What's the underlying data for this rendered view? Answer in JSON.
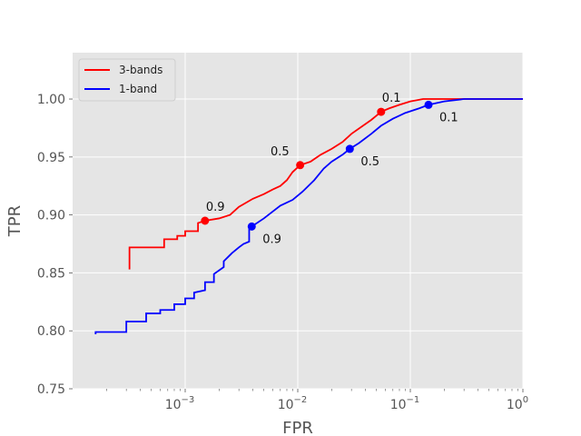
{
  "chart_data": {
    "type": "line",
    "title": "",
    "xlabel": "FPR",
    "ylabel": "TPR",
    "xscale": "log",
    "xlim": [
      0.0001,
      1.0
    ],
    "ylim": [
      0.75,
      1.04
    ],
    "x_ticks": [
      0.001,
      0.01,
      0.1,
      1
    ],
    "x_tick_labels": [
      {
        "base": "10",
        "exp": "−3"
      },
      {
        "base": "10",
        "exp": "−2"
      },
      {
        "base": "10",
        "exp": "−1"
      },
      {
        "base": "10",
        "exp": "0"
      }
    ],
    "y_ticks": [
      0.75,
      0.8,
      0.85,
      0.9,
      0.95,
      1.0
    ],
    "y_tick_labels": [
      "0.75",
      "0.80",
      "0.85",
      "0.90",
      "0.95",
      "1.00"
    ],
    "grid": true,
    "legend_position": "top-left",
    "series": [
      {
        "name": "3-bands",
        "color": "#ff0000",
        "points": [
          [
            0.00032,
            0.853
          ],
          [
            0.00032,
            0.872
          ],
          [
            0.00065,
            0.872
          ],
          [
            0.00065,
            0.879
          ],
          [
            0.00085,
            0.879
          ],
          [
            0.00085,
            0.882
          ],
          [
            0.001,
            0.882
          ],
          [
            0.001,
            0.886
          ],
          [
            0.0013,
            0.886
          ],
          [
            0.0013,
            0.893
          ],
          [
            0.0015,
            0.895
          ],
          [
            0.002,
            0.897
          ],
          [
            0.0025,
            0.9
          ],
          [
            0.003,
            0.907
          ],
          [
            0.004,
            0.914
          ],
          [
            0.005,
            0.918
          ],
          [
            0.006,
            0.922
          ],
          [
            0.007,
            0.925
          ],
          [
            0.008,
            0.93
          ],
          [
            0.009,
            0.937
          ],
          [
            0.0105,
            0.943
          ],
          [
            0.013,
            0.946
          ],
          [
            0.016,
            0.952
          ],
          [
            0.02,
            0.957
          ],
          [
            0.025,
            0.963
          ],
          [
            0.03,
            0.97
          ],
          [
            0.038,
            0.977
          ],
          [
            0.045,
            0.982
          ],
          [
            0.055,
            0.989
          ],
          [
            0.065,
            0.992
          ],
          [
            0.08,
            0.995
          ],
          [
            0.1,
            0.998
          ],
          [
            0.13,
            1.0
          ],
          [
            0.2,
            1.0
          ],
          [
            1.0,
            1.0
          ]
        ]
      },
      {
        "name": "1-band",
        "color": "#0000ff",
        "points": [
          [
            0.00016,
            0.797
          ],
          [
            0.00016,
            0.799
          ],
          [
            0.0003,
            0.799
          ],
          [
            0.0003,
            0.808
          ],
          [
            0.00045,
            0.808
          ],
          [
            0.00045,
            0.815
          ],
          [
            0.0006,
            0.815
          ],
          [
            0.0006,
            0.818
          ],
          [
            0.0008,
            0.818
          ],
          [
            0.0008,
            0.823
          ],
          [
            0.001,
            0.823
          ],
          [
            0.001,
            0.828
          ],
          [
            0.0012,
            0.828
          ],
          [
            0.0012,
            0.833
          ],
          [
            0.0015,
            0.835
          ],
          [
            0.0015,
            0.842
          ],
          [
            0.0018,
            0.842
          ],
          [
            0.0018,
            0.849
          ],
          [
            0.0022,
            0.855
          ],
          [
            0.0022,
            0.86
          ],
          [
            0.0026,
            0.867
          ],
          [
            0.003,
            0.872
          ],
          [
            0.0033,
            0.875
          ],
          [
            0.0037,
            0.877
          ],
          [
            0.0037,
            0.888
          ],
          [
            0.0039,
            0.89
          ],
          [
            0.005,
            0.897
          ],
          [
            0.006,
            0.903
          ],
          [
            0.007,
            0.908
          ],
          [
            0.009,
            0.913
          ],
          [
            0.011,
            0.92
          ],
          [
            0.014,
            0.93
          ],
          [
            0.017,
            0.94
          ],
          [
            0.02,
            0.946
          ],
          [
            0.025,
            0.952
          ],
          [
            0.029,
            0.957
          ],
          [
            0.035,
            0.962
          ],
          [
            0.045,
            0.97
          ],
          [
            0.055,
            0.977
          ],
          [
            0.07,
            0.983
          ],
          [
            0.09,
            0.988
          ],
          [
            0.12,
            0.992
          ],
          [
            0.145,
            0.995
          ],
          [
            0.2,
            0.998
          ],
          [
            0.3,
            1.0
          ],
          [
            1.0,
            1.0
          ]
        ]
      }
    ],
    "markers": [
      {
        "series": "3-bands",
        "x": 0.0015,
        "y": 0.895,
        "label": "0.9",
        "color": "#ff0000",
        "label_side": "above"
      },
      {
        "series": "3-bands",
        "x": 0.0105,
        "y": 0.943,
        "label": "0.5",
        "color": "#ff0000",
        "label_side": "left"
      },
      {
        "series": "3-bands",
        "x": 0.055,
        "y": 0.989,
        "label": "0.1",
        "color": "#ff0000",
        "label_side": "above"
      },
      {
        "series": "1-band",
        "x": 0.0039,
        "y": 0.89,
        "label": "0.9",
        "color": "#0000ff",
        "label_side": "below"
      },
      {
        "series": "1-band",
        "x": 0.029,
        "y": 0.957,
        "label": "0.5",
        "color": "#0000ff",
        "label_side": "below"
      },
      {
        "series": "1-band",
        "x": 0.145,
        "y": 0.995,
        "label": "0.1",
        "color": "#0000ff",
        "label_side": "below"
      }
    ]
  }
}
